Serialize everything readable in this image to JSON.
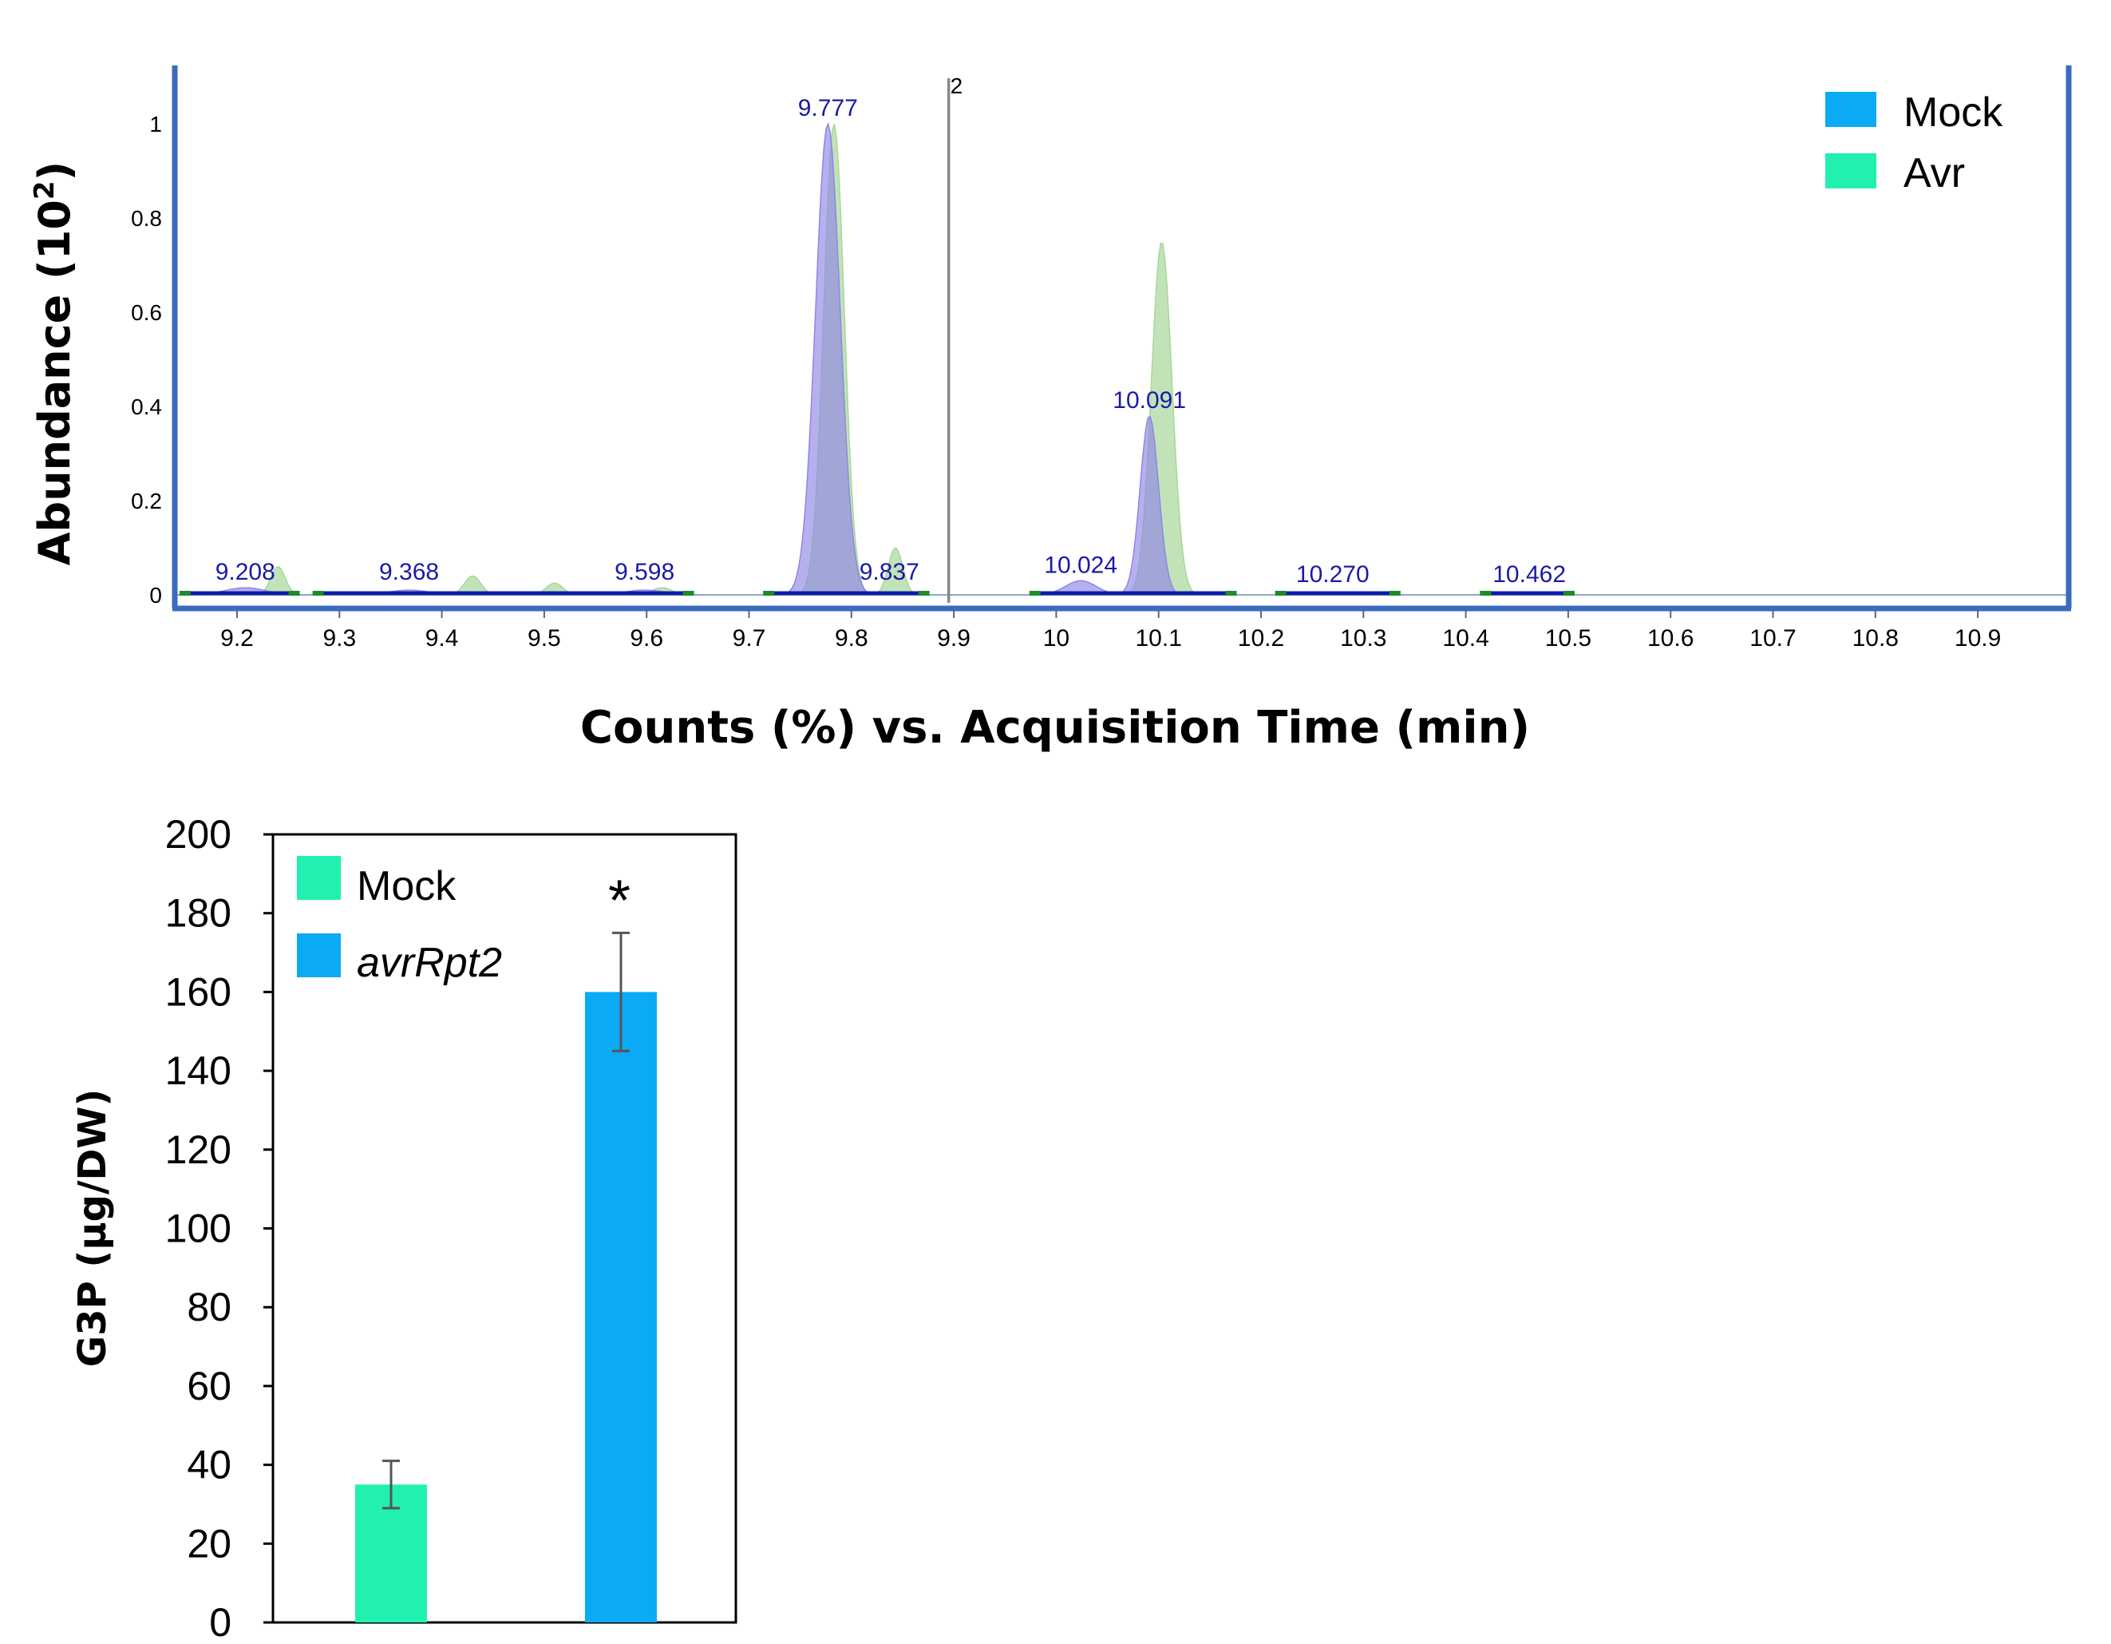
{
  "colors": {
    "frame": "#3a6bbf",
    "mock_fill": "#8f86e6",
    "avr_fill": "#a8d79a",
    "peak_label": "#1a1aa8",
    "legend_mock": "#0aaaf5",
    "legend_avr": "#22f0b0",
    "bar_mock": "#22f0b0",
    "bar_avr": "#0aaaf5",
    "error_bar": "#555555"
  },
  "chart_data": [
    {
      "type": "area",
      "xlabel": "Counts (%) vs. Acquisition Time (min)",
      "ylabel": "Abundance (10",
      "ylabel_sup": "2",
      "ylabel_close": ")",
      "xlim": [
        9.14,
        10.99
      ],
      "ylim": [
        0,
        1.1
      ],
      "x_ticks": [
        "9.2",
        "9.3",
        "9.4",
        "9.5",
        "9.6",
        "9.7",
        "9.8",
        "9.9",
        "10",
        "10.1",
        "10.2",
        "10.3",
        "10.4",
        "10.5",
        "10.6",
        "10.7",
        "10.8",
        "10.9"
      ],
      "y_ticks": [
        "0",
        "0.2",
        "0.4",
        "0.6",
        "0.8",
        "1"
      ],
      "marker": {
        "x": 9.895,
        "label": "2"
      },
      "legend": {
        "position": "top-right",
        "entries": [
          "Mock",
          "Avr"
        ]
      },
      "series": [
        {
          "name": "Mock",
          "peaks": [
            {
              "center": 9.777,
              "height": 1.0,
              "width": 0.012
            },
            {
              "center": 10.091,
              "height": 0.38,
              "width": 0.009
            },
            {
              "center": 10.024,
              "height": 0.03,
              "width": 0.015
            },
            {
              "center": 9.208,
              "height": 0.015,
              "width": 0.02
            },
            {
              "center": 9.368,
              "height": 0.01,
              "width": 0.02
            },
            {
              "center": 9.598,
              "height": 0.01,
              "width": 0.02
            }
          ]
        },
        {
          "name": "Avr",
          "peaks": [
            {
              "center": 9.783,
              "height": 1.0,
              "width": 0.01
            },
            {
              "center": 10.103,
              "height": 0.75,
              "width": 0.01
            },
            {
              "center": 9.24,
              "height": 0.06,
              "width": 0.007
            },
            {
              "center": 9.43,
              "height": 0.04,
              "width": 0.008
            },
            {
              "center": 9.51,
              "height": 0.025,
              "width": 0.008
            },
            {
              "center": 9.843,
              "height": 0.1,
              "width": 0.007
            },
            {
              "center": 9.615,
              "height": 0.015,
              "width": 0.01
            }
          ]
        }
      ],
      "peak_labels": [
        {
          "x": 9.208,
          "y": 0.015,
          "text": "9.208"
        },
        {
          "x": 9.368,
          "y": 0.015,
          "text": "9.368"
        },
        {
          "x": 9.598,
          "y": 0.015,
          "text": "9.598"
        },
        {
          "x": 9.777,
          "y": 1.0,
          "text": "9.777"
        },
        {
          "x": 9.837,
          "y": 0.015,
          "text": "9.837"
        },
        {
          "x": 10.024,
          "y": 0.03,
          "text": "10.024"
        },
        {
          "x": 10.091,
          "y": 0.38,
          "text": "10.091"
        },
        {
          "x": 10.27,
          "y": 0.01,
          "text": "10.270"
        },
        {
          "x": 10.462,
          "y": 0.01,
          "text": "10.462"
        }
      ],
      "integration_segments": [
        {
          "x1": 9.15,
          "x2": 9.255
        },
        {
          "x1": 9.28,
          "x2": 9.64
        },
        {
          "x1": 9.72,
          "x2": 9.87
        },
        {
          "x1": 9.98,
          "x2": 10.17
        },
        {
          "x1": 10.22,
          "x2": 10.33
        },
        {
          "x1": 10.42,
          "x2": 10.5
        }
      ]
    },
    {
      "type": "bar",
      "ylabel": "G3P (µg/DW)",
      "ylim": [
        0,
        200
      ],
      "y_ticks": [
        "0",
        "20",
        "40",
        "60",
        "80",
        "100",
        "120",
        "140",
        "160",
        "180",
        "200"
      ],
      "categories": [
        "Mock",
        "avrRpt2"
      ],
      "values": [
        35,
        160
      ],
      "errors": [
        6,
        15
      ],
      "significance": [
        "",
        "*"
      ],
      "legend": {
        "position": "top-left",
        "entries": [
          "Mock",
          "avrRpt2"
        ]
      },
      "grid": false
    }
  ]
}
